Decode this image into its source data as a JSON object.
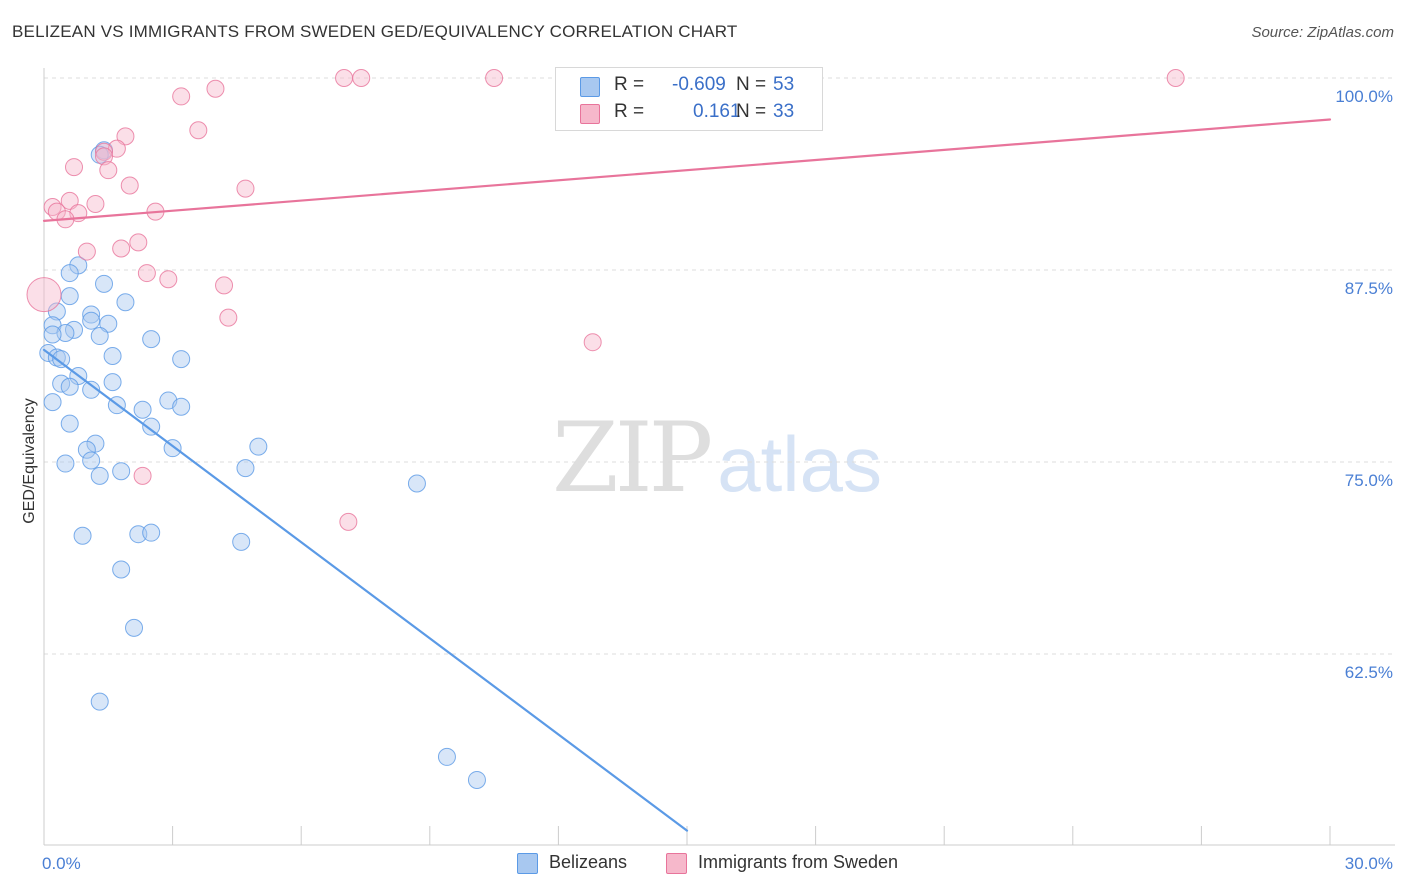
{
  "title": "BELIZEAN VS IMMIGRANTS FROM SWEDEN GED/EQUIVALENCY CORRELATION CHART",
  "source": "Source: ZipAtlas.com",
  "watermark": {
    "zip": "ZIP",
    "atlas": "atlas"
  },
  "legend": {
    "rows": [
      {
        "r_label": "R =",
        "r_value": "-0.609",
        "n_label": "N =",
        "n_value": "53",
        "color": "#a8c8f0"
      },
      {
        "r_label": "R =",
        "r_value": "0.161",
        "n_label": "N =",
        "n_value": "33",
        "color": "#f6b8cb"
      }
    ]
  },
  "bottom_legend": [
    {
      "label": "Belizeans",
      "color": "#a8c8f0"
    },
    {
      "label": "Immigrants from Sweden",
      "color": "#f6b8cb"
    }
  ],
  "chart_data": {
    "type": "scatter",
    "title": "BELIZEAN VS IMMIGRANTS FROM SWEDEN GED/EQUIVALENCY CORRELATION CHART",
    "xlabel": "",
    "ylabel": "GED/Equivalency",
    "xlim": [
      0,
      30
    ],
    "ylim": [
      51,
      101
    ],
    "x_tick_labels": [
      {
        "value": 0,
        "label": "0.0%"
      },
      {
        "value": 30,
        "label": "30.0%"
      }
    ],
    "y_tick_labels": [
      {
        "value": 100,
        "label": "100.0%"
      },
      {
        "value": 87.5,
        "label": "87.5%"
      },
      {
        "value": 75,
        "label": "75.0%"
      },
      {
        "value": 62.5,
        "label": "62.5%"
      }
    ],
    "x_minor_ticks": [
      0,
      3,
      6,
      9,
      12,
      15,
      18,
      21,
      24,
      27,
      30
    ],
    "y_gridlines": [
      100,
      87.5,
      75,
      62.5
    ],
    "grid": true,
    "legend_position": "top-center",
    "series": [
      {
        "name": "Belizeans",
        "color": "#5b9ae6",
        "fill": "#a8c8f0",
        "trend": {
          "x": [
            0,
            15
          ],
          "y": [
            82.3,
            51
          ]
        },
        "points": [
          [
            1.4,
            95.3
          ],
          [
            1.3,
            95.0
          ],
          [
            0.8,
            87.8
          ],
          [
            0.6,
            87.3
          ],
          [
            1.4,
            86.6
          ],
          [
            0.6,
            85.8
          ],
          [
            1.9,
            85.4
          ],
          [
            0.3,
            84.8
          ],
          [
            1.1,
            84.6
          ],
          [
            1.1,
            84.2
          ],
          [
            1.5,
            84.0
          ],
          [
            0.2,
            83.9
          ],
          [
            0.7,
            83.6
          ],
          [
            0.5,
            83.4
          ],
          [
            0.2,
            83.3
          ],
          [
            1.3,
            83.2
          ],
          [
            2.5,
            83.0
          ],
          [
            0.1,
            82.1
          ],
          [
            0.3,
            81.8
          ],
          [
            0.4,
            81.7
          ],
          [
            1.6,
            81.9
          ],
          [
            3.2,
            81.7
          ],
          [
            0.8,
            80.6
          ],
          [
            0.4,
            80.1
          ],
          [
            0.6,
            79.9
          ],
          [
            1.6,
            80.2
          ],
          [
            1.1,
            79.7
          ],
          [
            0.2,
            78.9
          ],
          [
            1.7,
            78.7
          ],
          [
            2.9,
            79.0
          ],
          [
            2.3,
            78.4
          ],
          [
            3.2,
            78.6
          ],
          [
            0.6,
            77.5
          ],
          [
            2.5,
            77.3
          ],
          [
            1.2,
            76.2
          ],
          [
            1.0,
            75.8
          ],
          [
            3.0,
            75.9
          ],
          [
            5.0,
            76.0
          ],
          [
            0.5,
            74.9
          ],
          [
            1.1,
            75.1
          ],
          [
            1.3,
            74.1
          ],
          [
            1.8,
            74.4
          ],
          [
            4.7,
            74.6
          ],
          [
            8.7,
            73.6
          ],
          [
            0.9,
            70.2
          ],
          [
            2.2,
            70.3
          ],
          [
            2.5,
            70.4
          ],
          [
            4.6,
            69.8
          ],
          [
            1.8,
            68.0
          ],
          [
            2.1,
            64.2
          ],
          [
            1.3,
            59.4
          ],
          [
            9.4,
            55.8
          ],
          [
            10.1,
            54.3
          ]
        ]
      },
      {
        "name": "Immigrants from Sweden",
        "color": "#e8749b",
        "fill": "#f6b8cb",
        "trend": {
          "x": [
            0,
            30
          ],
          "y": [
            90.7,
            97.3
          ]
        },
        "points": [
          [
            7.0,
            100.0
          ],
          [
            7.4,
            100.0
          ],
          [
            10.5,
            100.0
          ],
          [
            26.4,
            100.0
          ],
          [
            4.0,
            99.3
          ],
          [
            3.2,
            98.8
          ],
          [
            3.6,
            96.6
          ],
          [
            1.9,
            96.2
          ],
          [
            1.7,
            95.4
          ],
          [
            1.4,
            95.2
          ],
          [
            1.4,
            94.9
          ],
          [
            0.7,
            94.2
          ],
          [
            1.5,
            94.0
          ],
          [
            2.0,
            93.0
          ],
          [
            4.7,
            92.8
          ],
          [
            0.6,
            92.0
          ],
          [
            1.2,
            91.8
          ],
          [
            0.2,
            91.6
          ],
          [
            0.3,
            91.3
          ],
          [
            0.8,
            91.2
          ],
          [
            2.6,
            91.3
          ],
          [
            0.5,
            90.8
          ],
          [
            2.2,
            89.3
          ],
          [
            1.0,
            88.7
          ],
          [
            1.8,
            88.9
          ],
          [
            2.4,
            87.3
          ],
          [
            2.9,
            86.9
          ],
          [
            4.2,
            86.5
          ],
          [
            0.0,
            85.9
          ],
          [
            4.3,
            84.4
          ],
          [
            12.8,
            82.8
          ],
          [
            2.3,
            74.1
          ],
          [
            7.1,
            71.1
          ]
        ]
      }
    ]
  }
}
